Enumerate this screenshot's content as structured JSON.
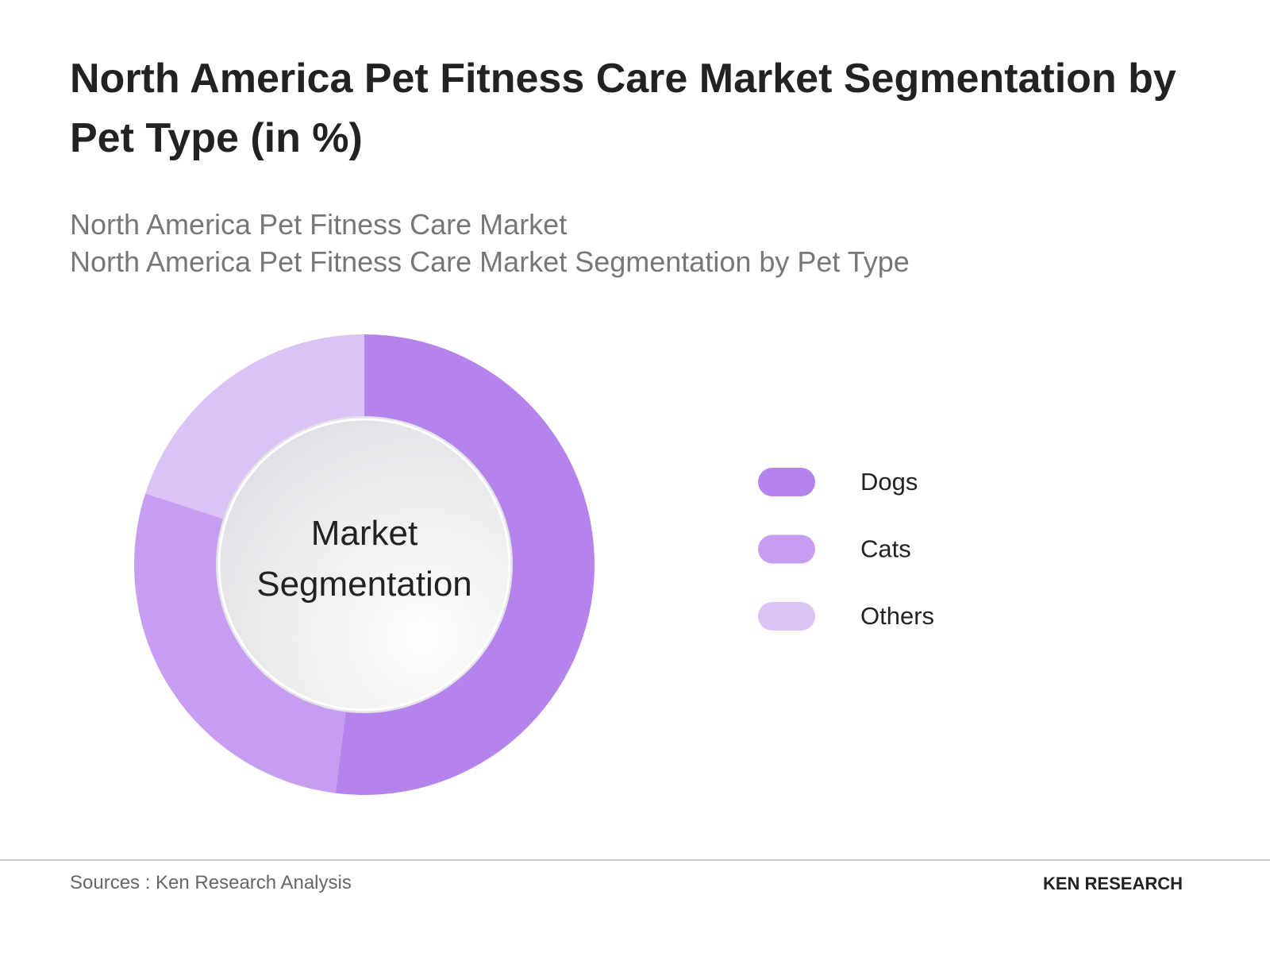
{
  "chart_data": {
    "type": "pie",
    "donut": true,
    "title": "North America Pet Fitness Care Market Segmentation by Pet Type (in %)",
    "subtitles": [
      "North America Pet Fitness Care Market",
      "North America Pet Fitness Care Market Segmentation by Pet Type"
    ],
    "center_label": "Market Segmentation",
    "categories": [
      "Dogs",
      "Cats",
      "Others"
    ],
    "values": [
      52,
      28,
      20
    ],
    "colors": [
      "#b484ec",
      "#c69df0",
      "#dcc3f6"
    ],
    "legend": "right"
  },
  "footer": {
    "sources": "Sources : Ken Research Analysis",
    "logo": "KEN RESEARCH"
  }
}
